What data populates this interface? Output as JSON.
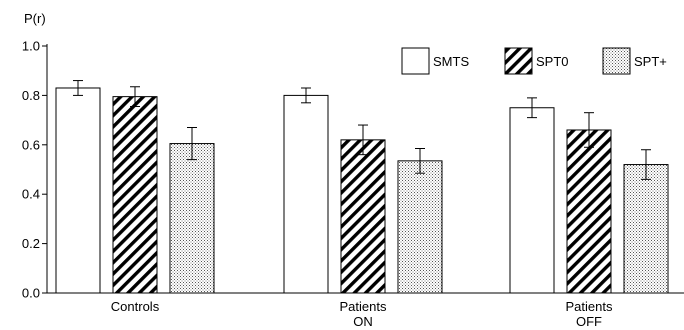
{
  "chart_data": {
    "type": "bar",
    "ylabel": "P(r)",
    "xlabel": "",
    "title": "",
    "ylim": [
      0,
      1.0
    ],
    "yticks": [
      "0.0",
      "0.2",
      "0.4",
      "0.6",
      "0.8",
      "1.0"
    ],
    "categories": [
      {
        "line1": "Controls",
        "line2": ""
      },
      {
        "line1": "Patients",
        "line2": "ON"
      },
      {
        "line1": "Patients",
        "line2": "OFF"
      }
    ],
    "series": [
      {
        "name": "SMTS",
        "pattern": "white",
        "values": [
          0.83,
          0.8,
          0.75
        ],
        "errors": [
          0.03,
          0.03,
          0.04
        ]
      },
      {
        "name": "SPT0",
        "pattern": "hatch",
        "values": [
          0.795,
          0.62,
          0.66
        ],
        "errors": [
          0.04,
          0.06,
          0.07
        ]
      },
      {
        "name": "SPT+",
        "pattern": "dots",
        "values": [
          0.605,
          0.535,
          0.52
        ],
        "errors": [
          0.065,
          0.05,
          0.06
        ]
      }
    ],
    "legend_position": "top-right",
    "grid": false
  }
}
